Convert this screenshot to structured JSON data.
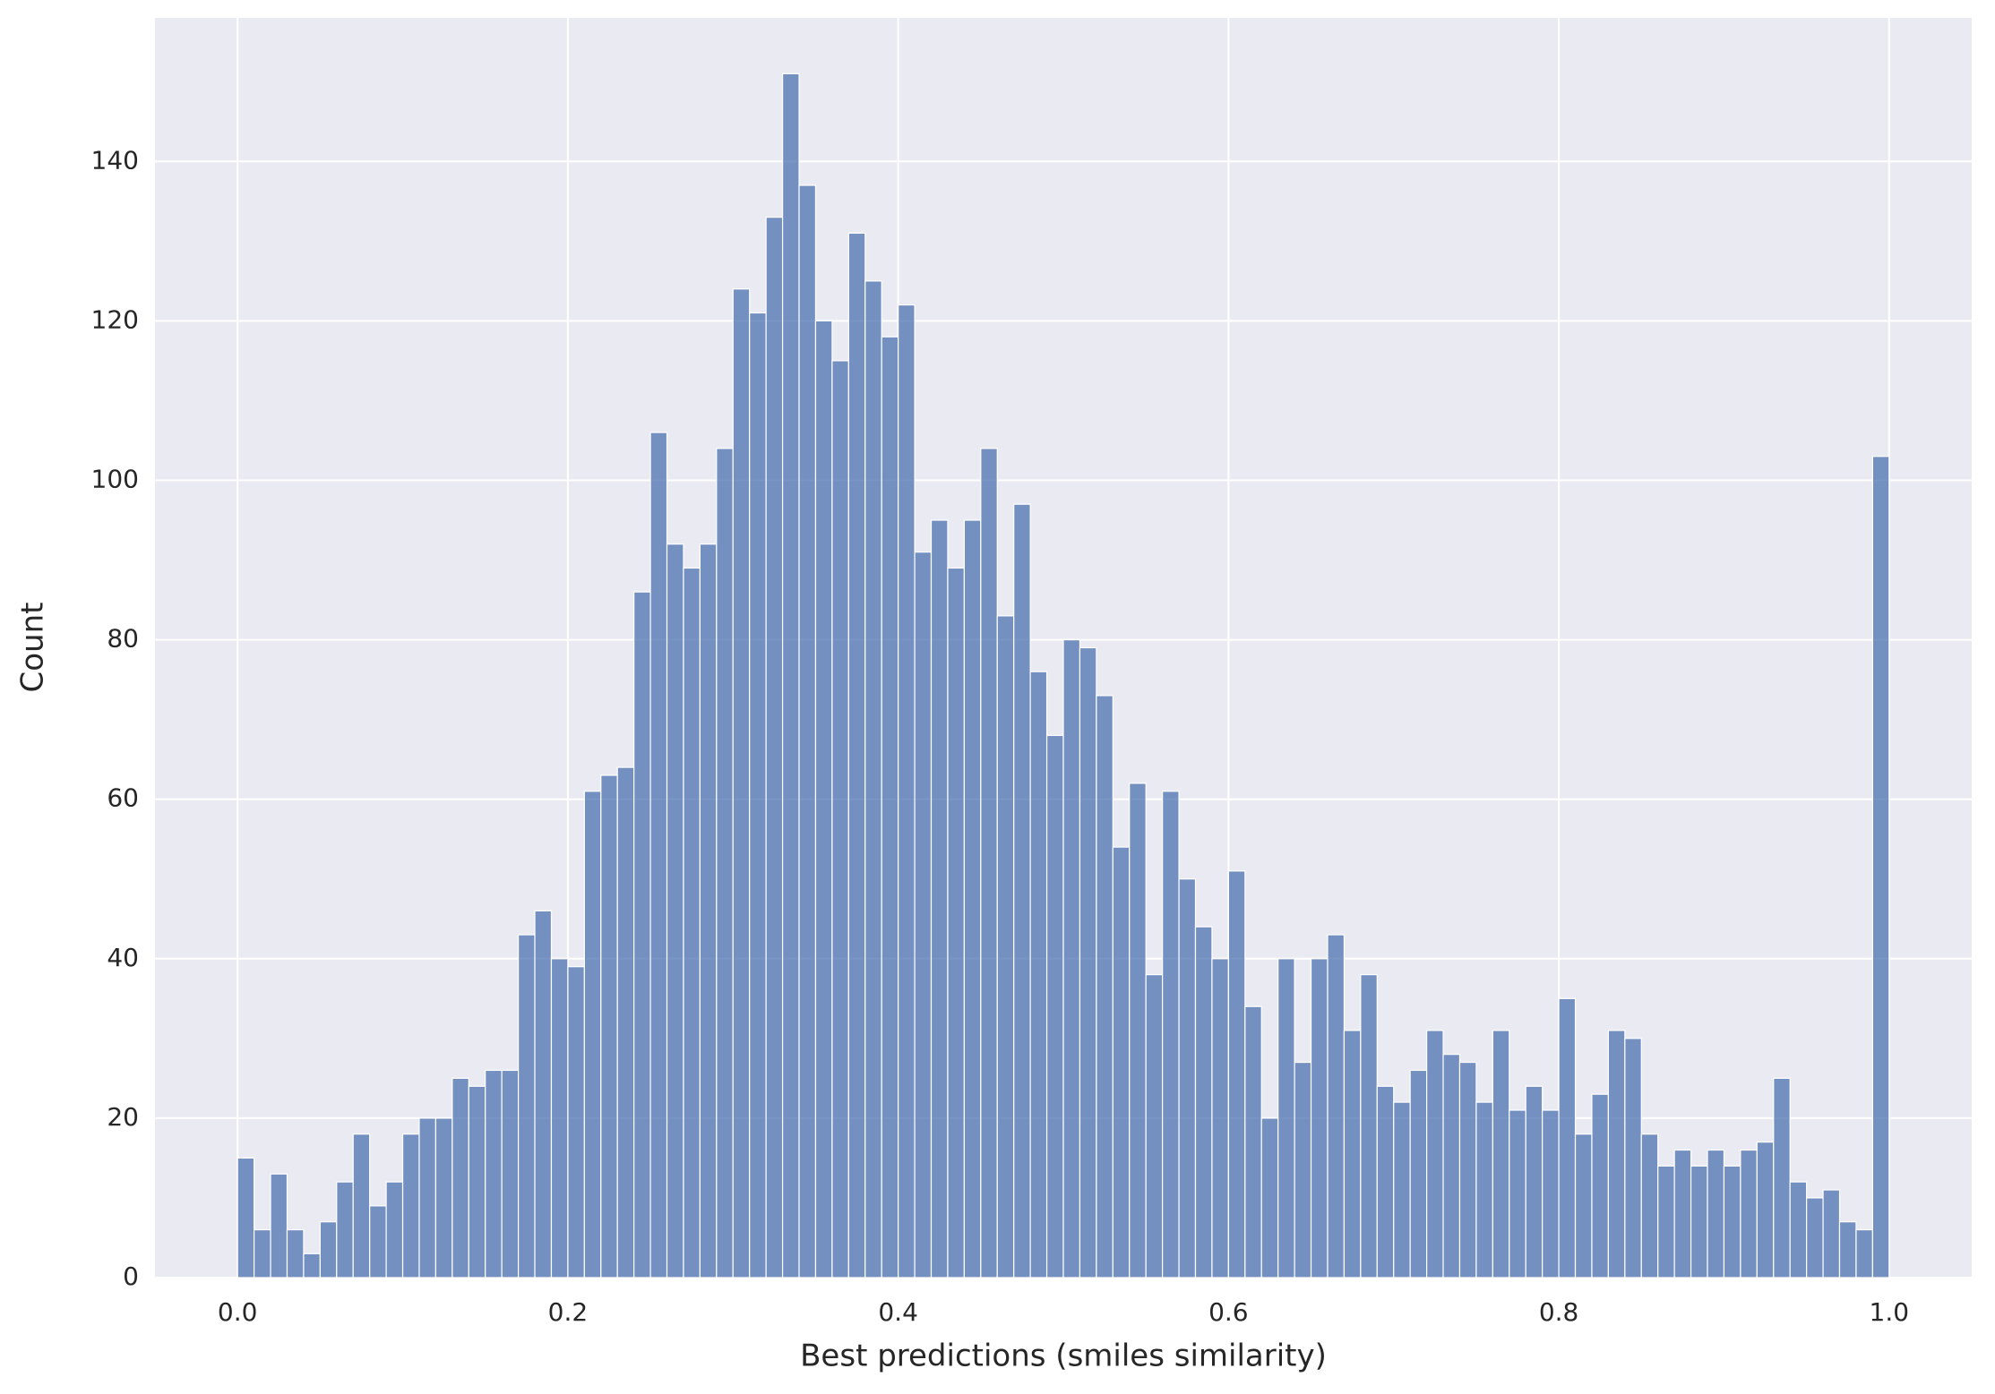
{
  "chart_data": {
    "type": "histogram",
    "x_label": "Best predictions (smiles similarity)",
    "y_label": "Count",
    "bins": [
      0,
      0.01,
      0.02,
      0.03,
      0.04,
      0.05,
      0.06,
      0.07,
      0.08,
      0.09,
      0.1,
      0.11,
      0.12,
      0.13,
      0.14,
      0.15,
      0.16,
      0.17,
      0.18,
      0.19,
      0.2,
      0.21,
      0.22,
      0.23,
      0.24,
      0.25,
      0.26,
      0.27,
      0.28,
      0.29,
      0.3,
      0.31,
      0.32,
      0.33,
      0.34,
      0.35,
      0.36,
      0.37,
      0.38,
      0.39,
      0.4,
      0.41,
      0.42,
      0.43,
      0.44,
      0.45,
      0.46,
      0.47,
      0.48,
      0.49,
      0.5,
      0.51,
      0.52,
      0.53,
      0.54,
      0.55,
      0.56,
      0.57,
      0.58,
      0.59,
      0.6,
      0.61,
      0.62,
      0.63,
      0.64,
      0.65,
      0.66,
      0.67,
      0.68,
      0.69,
      0.7,
      0.71,
      0.72,
      0.73,
      0.74,
      0.75,
      0.76,
      0.77,
      0.78,
      0.79,
      0.8,
      0.81,
      0.82,
      0.83,
      0.84,
      0.85,
      0.86,
      0.87,
      0.88,
      0.89,
      0.9,
      0.91,
      0.92,
      0.93,
      0.94,
      0.95,
      0.96,
      0.97,
      0.98,
      0.99,
      1
    ],
    "values": [
      15,
      6,
      13,
      6,
      3,
      7,
      12,
      18,
      9,
      12,
      18,
      20,
      20,
      25,
      24,
      26,
      26,
      43,
      46,
      40,
      39,
      61,
      63,
      64,
      86,
      106,
      92,
      89,
      92,
      104,
      124,
      121,
      133,
      151,
      137,
      120,
      115,
      131,
      125,
      118,
      122,
      91,
      95,
      89,
      95,
      104,
      83,
      97,
      76,
      68,
      80,
      79,
      73,
      54,
      62,
      38,
      61,
      50,
      44,
      40,
      51,
      34,
      20,
      40,
      27,
      40,
      43,
      31,
      38,
      24,
      22,
      26,
      31,
      28,
      27,
      22,
      31,
      21,
      24,
      21,
      35,
      18,
      23,
      31,
      30,
      18,
      14,
      16,
      14,
      16,
      14,
      16,
      17,
      25,
      12,
      10,
      11,
      7,
      6,
      103
    ],
    "color": "#4c72b0",
    "xlim": [
      -0.05,
      1.05
    ],
    "ylim": [
      0,
      158
    ],
    "xticks": [
      {
        "value": 0,
        "label": "0.0"
      },
      0.2,
      0.4,
      0.6,
      0.8,
      {
        "value": 1,
        "label": "1.0"
      }
    ],
    "yticks": [
      0,
      20,
      40,
      60,
      80,
      100,
      120,
      140
    ],
    "grid": true
  }
}
